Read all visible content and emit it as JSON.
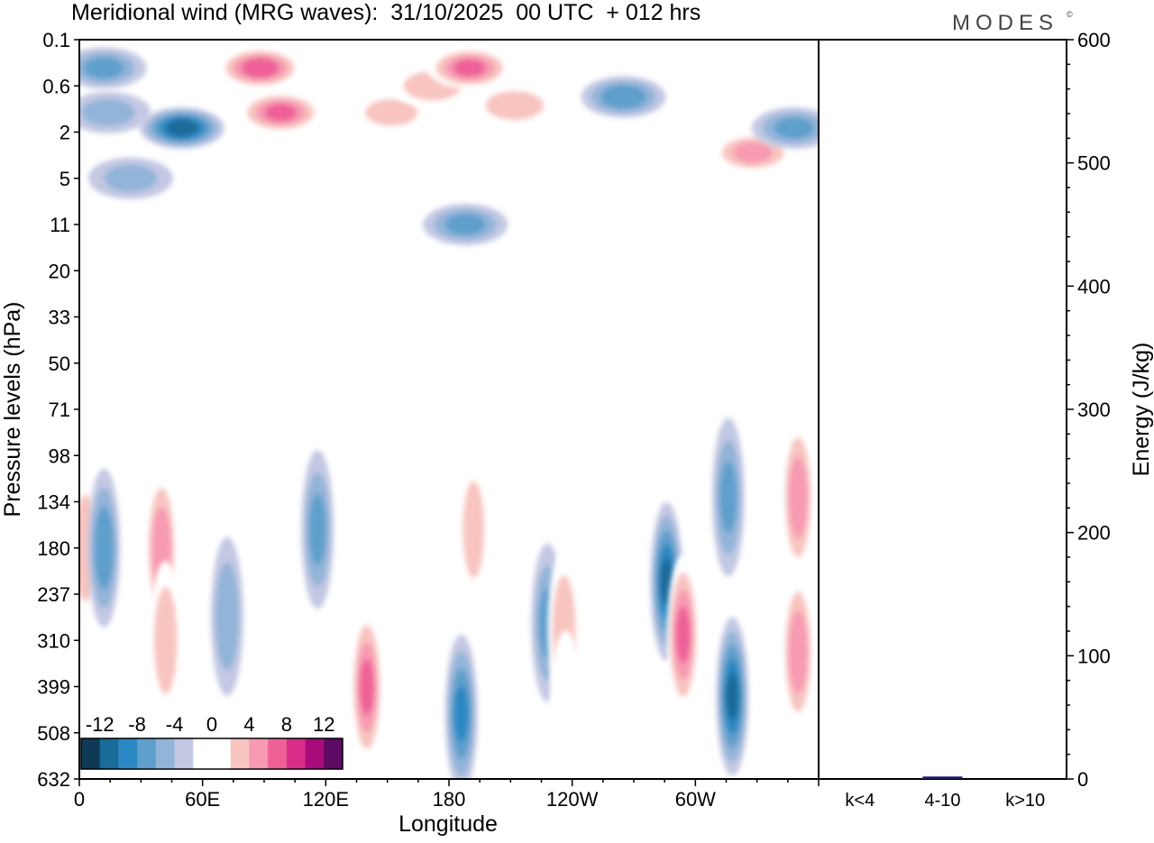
{
  "chart_data": [
    {
      "type": "heatmap",
      "panel": "main",
      "title": "Meridional wind (MRG waves):  31/10/2025  00 UTC  + 012 hrs",
      "brand": "MODES",
      "brand_mark": "©",
      "xlabel": "Longitude",
      "ylabel": "Pressure levels (hPa)",
      "x_ticks": [
        "0",
        "60E",
        "120E",
        "180",
        "120W",
        "60W"
      ],
      "x_tick_values": [
        0,
        60,
        120,
        180,
        240,
        300
      ],
      "xlim": [
        0,
        360
      ],
      "y_ticks": [
        "0.1",
        "0.6",
        "2",
        "5",
        "11",
        "20",
        "33",
        "50",
        "71",
        "98",
        "134",
        "180",
        "237",
        "310",
        "399",
        "508",
        "632"
      ],
      "colorbar": {
        "labels": [
          "-12",
          "-8",
          "-4",
          "0",
          "4",
          "8",
          "12"
        ],
        "label_values": [
          -12,
          -8,
          -4,
          0,
          4,
          8,
          12
        ],
        "levels": [
          -14,
          -12,
          -10,
          -8,
          -6,
          -4,
          -2,
          2,
          4,
          6,
          8,
          10,
          12,
          14
        ],
        "colors": [
          "#0e3a55",
          "#1a6a9a",
          "#2b88c2",
          "#5f9fcc",
          "#92b4d8",
          "#c3c8e3",
          "#ffffff",
          "#ffffff",
          "#f8c4c0",
          "#f79ab2",
          "#ee6197",
          "#d92d8a",
          "#a80c7a",
          "#5c0a64"
        ]
      },
      "features": [
        {
          "lon": 3,
          "plev": 180,
          "value": 5
        },
        {
          "lon": 12,
          "plev": 0.3,
          "value": -6
        },
        {
          "lon": 12,
          "plev": 180,
          "value": -7
        },
        {
          "lon": 14,
          "plev": 1.2,
          "value": -4
        },
        {
          "lon": 25,
          "plev": 5,
          "value": -4
        },
        {
          "lon": 40,
          "plev": 180,
          "value": 7
        },
        {
          "lon": 42,
          "plev": 310,
          "value": 5
        },
        {
          "lon": 50,
          "plev": 1.8,
          "value": -11
        },
        {
          "lon": 72,
          "plev": 270,
          "value": -5
        },
        {
          "lon": 88,
          "plev": 0.3,
          "value": 9
        },
        {
          "lon": 98,
          "plev": 1.2,
          "value": 8
        },
        {
          "lon": 100,
          "plev": 11,
          "value": 3
        },
        {
          "lon": 116,
          "plev": 160,
          "value": -6
        },
        {
          "lon": 140,
          "plev": 400,
          "value": 8
        },
        {
          "lon": 152,
          "plev": 1.2,
          "value": 4
        },
        {
          "lon": 172,
          "plev": 0.6,
          "value": 5
        },
        {
          "lon": 175,
          "plev": 30,
          "value": 3
        },
        {
          "lon": 186,
          "plev": 460,
          "value": -8
        },
        {
          "lon": 188,
          "plev": 11,
          "value": -6
        },
        {
          "lon": 190,
          "plev": 0.3,
          "value": 8
        },
        {
          "lon": 192,
          "plev": 160,
          "value": 4
        },
        {
          "lon": 202,
          "plev": 4,
          "value": 3
        },
        {
          "lon": 212,
          "plev": 1,
          "value": 5
        },
        {
          "lon": 212,
          "plev": 420,
          "value": 3
        },
        {
          "lon": 228,
          "plev": 280,
          "value": -6
        },
        {
          "lon": 236,
          "plev": 290,
          "value": 5
        },
        {
          "lon": 237,
          "plev": 450,
          "value": 3
        },
        {
          "lon": 265,
          "plev": 0.8,
          "value": -7
        },
        {
          "lon": 286,
          "plev": 220,
          "value": -10
        },
        {
          "lon": 294,
          "plev": 300,
          "value": 8
        },
        {
          "lon": 302,
          "plev": 90,
          "value": 3
        },
        {
          "lon": 316,
          "plev": 130,
          "value": -6
        },
        {
          "lon": 318,
          "plev": 420,
          "value": -10
        },
        {
          "lon": 328,
          "plev": 3,
          "value": 6
        },
        {
          "lon": 348,
          "plev": 1.8,
          "value": -6
        },
        {
          "lon": 350,
          "plev": 130,
          "value": 7
        },
        {
          "lon": 350,
          "plev": 330,
          "value": 7
        }
      ]
    },
    {
      "type": "bar",
      "panel": "energy",
      "ylabel": "Energy (J/kg)",
      "ylim": [
        0,
        600
      ],
      "y_ticks": [
        "0",
        "100",
        "200",
        "300",
        "400",
        "500",
        "600"
      ],
      "y_tick_values": [
        0,
        100,
        200,
        300,
        400,
        500,
        600
      ],
      "categories": [
        "k<4",
        "4-10",
        "k>10"
      ],
      "values": [
        0,
        2,
        0
      ],
      "bar_color": "#1a1a5a"
    }
  ]
}
